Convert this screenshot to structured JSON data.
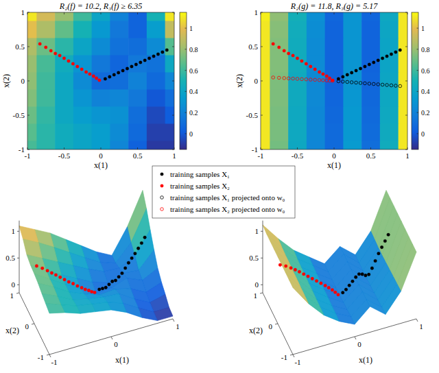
{
  "chart_data": [
    {
      "type": "heatmap",
      "title": "R₂(f) = 10.2, R₃(f) ≥ 6.35",
      "x_label": "x(1)",
      "y_label": "x(2)",
      "xlim": [
        -1,
        1
      ],
      "ylim": [
        -1,
        1
      ],
      "xticks": [
        -1,
        -0.5,
        0,
        0.5,
        1
      ],
      "yticks": [
        -1,
        -0.5,
        0,
        0.5,
        1
      ],
      "grid_x": [
        -1,
        -0.75,
        -0.5,
        -0.25,
        0,
        0.25,
        0.5,
        0.75,
        1
      ],
      "grid_y": [
        1,
        0.75,
        0.5,
        0.25,
        0,
        -0.25,
        -0.5,
        -0.75,
        -1
      ],
      "cells": [
        [
          1.1,
          0.95,
          0.8,
          0.6,
          0.4,
          0.2,
          0.05,
          0.5,
          1.1
        ],
        [
          1.0,
          0.85,
          0.68,
          0.5,
          0.32,
          0.15,
          0.05,
          0.35,
          0.9
        ],
        [
          0.85,
          0.7,
          0.55,
          0.4,
          0.25,
          0.12,
          0.1,
          0.25,
          0.65
        ],
        [
          0.8,
          0.62,
          0.45,
          0.3,
          0.15,
          0.06,
          0.15,
          0.12,
          0.42
        ],
        [
          0.78,
          0.6,
          0.42,
          0.25,
          0.08,
          0.1,
          0.2,
          0.08,
          0.22
        ],
        [
          0.75,
          0.6,
          0.42,
          0.3,
          0.2,
          0.22,
          0.15,
          0.0,
          0.1
        ],
        [
          0.7,
          0.57,
          0.42,
          0.35,
          0.3,
          0.28,
          0.1,
          -0.05,
          0.02
        ],
        [
          0.66,
          0.55,
          0.45,
          0.4,
          0.35,
          0.25,
          0.08,
          -0.08,
          -0.08
        ],
        [
          0.62,
          0.55,
          0.45,
          0.4,
          0.35,
          0.22,
          0.04,
          -0.1,
          -0.1
        ]
      ],
      "colorbar": {
        "range": [
          -0.15,
          1.15
        ],
        "ticks": [
          0,
          0.2,
          0.4,
          0.6,
          0.8,
          1
        ]
      },
      "series": [
        {
          "name": "training samples X₁",
          "color": "#000000",
          "marker": "circle",
          "x": [
            0.06,
            0.12,
            0.18,
            0.24,
            0.3,
            0.36,
            0.42,
            0.48,
            0.54,
            0.6,
            0.66,
            0.72,
            0.78,
            0.84,
            0.9
          ],
          "values": [
            0.03,
            0.06,
            0.09,
            0.12,
            0.15,
            0.18,
            0.21,
            0.24,
            0.27,
            0.3,
            0.33,
            0.36,
            0.39,
            0.42,
            0.45
          ]
        },
        {
          "name": "training samples X₂",
          "color": "#ff0000",
          "marker": "circle",
          "x": [
            -0.02,
            -0.06,
            -0.1,
            -0.15,
            -0.2,
            -0.26,
            -0.32,
            -0.38,
            -0.44,
            -0.5,
            -0.56,
            -0.62,
            -0.68,
            -0.75,
            -0.83
          ],
          "values": [
            0.01,
            0.04,
            0.07,
            0.1,
            0.13,
            0.17,
            0.21,
            0.25,
            0.29,
            0.33,
            0.37,
            0.4,
            0.44,
            0.49,
            0.54
          ]
        }
      ]
    },
    {
      "type": "heatmap",
      "title": "R₂(g) = 11.8, R₃(g) = 5.17",
      "x_label": "x(1)",
      "y_label": "x(2)",
      "xlim": [
        -1,
        1
      ],
      "ylim": [
        -1,
        1
      ],
      "xticks": [
        -1,
        -0.5,
        0,
        0.5,
        1
      ],
      "yticks": [
        -1,
        -0.5,
        0,
        0.5,
        1
      ],
      "grid_x": [
        -1,
        -0.75,
        -0.5,
        -0.25,
        0,
        0.25,
        0.5,
        0.75,
        1
      ],
      "grid_y": [
        1,
        0.75,
        0.5,
        0.25,
        0,
        -0.25,
        -0.5,
        -0.75,
        -1
      ],
      "cells": [
        [
          1.12,
          0.78,
          0.48,
          0.27,
          0.06,
          0.3,
          0.06,
          0.42,
          1.1
        ],
        [
          1.1,
          0.76,
          0.46,
          0.26,
          0.05,
          0.3,
          0.05,
          0.41,
          1.1
        ],
        [
          1.1,
          0.75,
          0.45,
          0.25,
          0.05,
          0.3,
          0.05,
          0.4,
          1.1
        ],
        [
          1.1,
          0.75,
          0.45,
          0.25,
          0.05,
          0.3,
          0.05,
          0.4,
          1.1
        ],
        [
          1.1,
          0.74,
          0.44,
          0.24,
          0.05,
          0.3,
          0.06,
          0.41,
          1.1
        ],
        [
          1.1,
          0.74,
          0.44,
          0.24,
          0.06,
          0.31,
          0.07,
          0.42,
          1.1
        ],
        [
          1.1,
          0.73,
          0.43,
          0.23,
          0.07,
          0.32,
          0.08,
          0.43,
          1.1
        ],
        [
          1.1,
          0.73,
          0.43,
          0.23,
          0.08,
          0.32,
          0.09,
          0.44,
          1.1
        ],
        [
          1.1,
          0.72,
          0.42,
          0.22,
          0.08,
          0.33,
          0.1,
          0.45,
          1.1
        ]
      ],
      "colorbar": {
        "range": [
          -0.15,
          1.15
        ],
        "ticks": [
          0,
          0.2,
          0.4,
          0.6,
          0.8,
          1
        ]
      },
      "series": [
        {
          "name": "training samples X₁",
          "color": "#000000",
          "marker": "circle",
          "x": [
            0.06,
            0.12,
            0.18,
            0.24,
            0.3,
            0.36,
            0.42,
            0.48,
            0.54,
            0.6,
            0.66,
            0.72,
            0.78,
            0.84,
            0.9
          ],
          "values": [
            0.03,
            0.06,
            0.09,
            0.12,
            0.15,
            0.18,
            0.21,
            0.24,
            0.27,
            0.3,
            0.33,
            0.36,
            0.39,
            0.42,
            0.45
          ]
        },
        {
          "name": "training samples X₂",
          "color": "#ff0000",
          "marker": "circle",
          "x": [
            -0.02,
            -0.06,
            -0.1,
            -0.15,
            -0.2,
            -0.26,
            -0.32,
            -0.38,
            -0.44,
            -0.5,
            -0.56,
            -0.62,
            -0.68,
            -0.75,
            -0.83
          ],
          "values": [
            0.01,
            0.04,
            0.07,
            0.1,
            0.13,
            0.17,
            0.21,
            0.25,
            0.29,
            0.33,
            0.37,
            0.4,
            0.44,
            0.49,
            0.54
          ]
        },
        {
          "name": "training samples X₁ projected onto w₀",
          "color": "#000000",
          "marker": "open-circle",
          "x": [
            0.06,
            0.12,
            0.18,
            0.24,
            0.3,
            0.36,
            0.42,
            0.48,
            0.54,
            0.6,
            0.66,
            0.72,
            0.78,
            0.84,
            0.9
          ],
          "values": [
            -0.005,
            -0.01,
            -0.015,
            -0.02,
            -0.025,
            -0.03,
            -0.035,
            -0.04,
            -0.045,
            -0.05,
            -0.055,
            -0.06,
            -0.065,
            -0.07,
            -0.075
          ]
        },
        {
          "name": "training samples X₂ projected onto w₀",
          "color": "#ff0000",
          "marker": "open-circle",
          "x": [
            -0.02,
            -0.06,
            -0.1,
            -0.15,
            -0.2,
            -0.26,
            -0.32,
            -0.38,
            -0.44,
            -0.5,
            -0.56,
            -0.62,
            -0.68,
            -0.75,
            -0.83
          ],
          "values": [
            0.001,
            0.004,
            0.006,
            0.009,
            0.012,
            0.016,
            0.019,
            0.023,
            0.026,
            0.03,
            0.034,
            0.037,
            0.041,
            0.045,
            0.05
          ]
        }
      ]
    },
    {
      "type": "surface",
      "x_label": "x(1)",
      "y_label": "x(2)",
      "xlim": [
        -1,
        1
      ],
      "ylim": [
        -1,
        1
      ],
      "zlim": [
        -0.15,
        1.2
      ],
      "xticks": [
        -1,
        0,
        1
      ],
      "yticks": [
        -1,
        0,
        1
      ],
      "zticks": [
        0,
        0.5,
        1
      ],
      "series": [
        {
          "color": "#000000",
          "marker": "circle",
          "values": [
            0.12,
            0.1,
            0.08,
            0.1,
            0.12,
            0.1,
            0.13,
            0.16,
            0.22,
            0.28,
            0.33,
            0.38,
            0.44,
            0.5,
            0.57
          ]
        },
        {
          "color": "#ff0000",
          "marker": "circle",
          "values": [
            0.1,
            0.11,
            0.13,
            0.15,
            0.18,
            0.21,
            0.25,
            0.28,
            0.32,
            0.36,
            0.4,
            0.44,
            0.48,
            0.52,
            0.56
          ]
        }
      ]
    },
    {
      "type": "surface",
      "x_label": "x(1)",
      "y_label": "x(2)",
      "xlim": [
        -1,
        1
      ],
      "ylim": [
        -1,
        1
      ],
      "zlim": [
        -0.15,
        1.2
      ],
      "xticks": [
        -1,
        0,
        1
      ],
      "yticks": [
        -1,
        0,
        1
      ],
      "zticks": [
        0,
        0.5,
        1
      ],
      "series": [
        {
          "color": "#000000",
          "marker": "circle",
          "values": [
            0.06,
            0.08,
            0.12,
            0.16,
            0.2,
            0.22,
            0.18,
            0.12,
            0.1,
            0.18,
            0.28,
            0.38,
            0.46,
            0.54,
            0.62
          ]
        },
        {
          "color": "#ff0000",
          "marker": "circle",
          "values": [
            0.06,
            0.1,
            0.14,
            0.18,
            0.22,
            0.26,
            0.3,
            0.34,
            0.38,
            0.42,
            0.46,
            0.5,
            0.53,
            0.56,
            0.58
          ]
        }
      ]
    }
  ]
}
